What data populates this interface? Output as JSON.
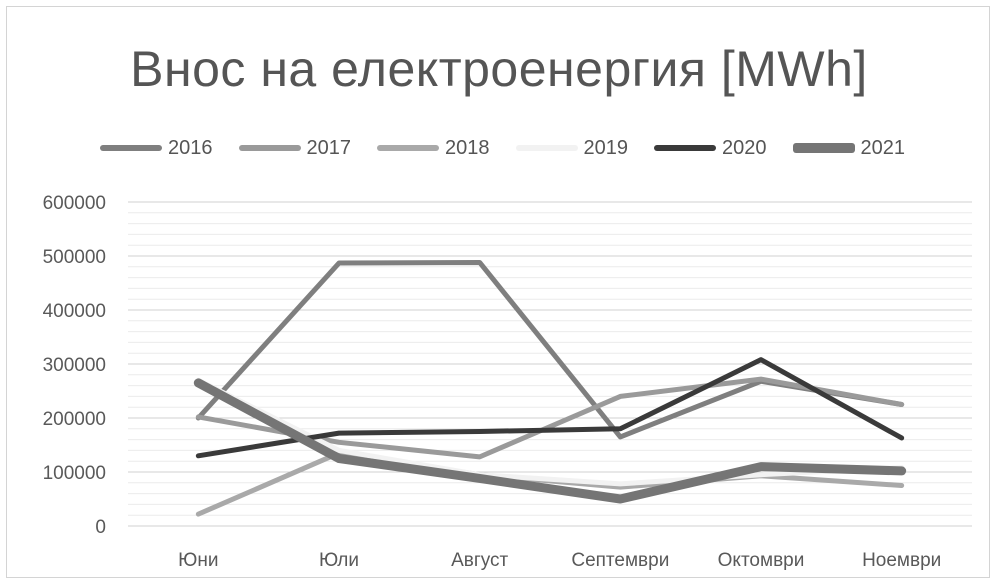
{
  "chart_data": {
    "type": "line",
    "title": "Внос на електроенергия [MWh]",
    "categories": [
      "Юни",
      "Юли",
      "Август",
      "Септември",
      "Октомври",
      "Ноември"
    ],
    "ylim": [
      0,
      600000
    ],
    "yticks": [
      "0",
      "100000",
      "200000",
      "300000",
      "400000",
      "500000",
      "600000"
    ],
    "grid": true,
    "legend_position": "top",
    "series": [
      {
        "name": "2016",
        "color": "#7f7f7f",
        "width": 5,
        "values": [
          200000,
          487000,
          488000,
          165000,
          268000,
          225000
        ]
      },
      {
        "name": "2017",
        "color": "#9a9a9a",
        "width": 5,
        "values": [
          202000,
          155000,
          128000,
          240000,
          272000,
          225000
        ]
      },
      {
        "name": "2018",
        "color": "#a9a9a9",
        "width": 5,
        "values": [
          22000,
          135000,
          95000,
          72000,
          93000,
          75000
        ]
      },
      {
        "name": "2019",
        "color": "#f2f2f2",
        "width": 5,
        "values": [
          270000,
          140000,
          95000,
          78000,
          95000,
          108000
        ]
      },
      {
        "name": "2020",
        "color": "#3a3a3a",
        "width": 5,
        "values": [
          130000,
          172000,
          175000,
          180000,
          308000,
          163000
        ]
      },
      {
        "name": "2021",
        "color": "#757575",
        "width": 9,
        "values": [
          265000,
          125000,
          88000,
          50000,
          110000,
          102000
        ]
      }
    ]
  }
}
